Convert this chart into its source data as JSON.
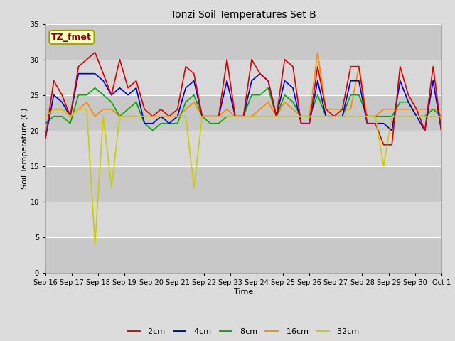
{
  "title": "Tonzi Soil Temperatures Set B",
  "xlabel": "Time",
  "ylabel": "Soil Temperature (C)",
  "annotation_text": "TZ_fmet",
  "annotation_color": "#8B0000",
  "annotation_bg": "#FFFFC0",
  "annotation_border": "#999900",
  "ylim": [
    0,
    35
  ],
  "yticks": [
    0,
    5,
    10,
    15,
    20,
    25,
    30,
    35
  ],
  "xtick_labels": [
    "Sep 16",
    "Sep 17",
    "Sep 18",
    "Sep 19",
    "Sep 20",
    "Sep 21",
    "Sep 22",
    "Sep 23",
    "Sep 24",
    "Sep 25",
    "Sep 26",
    "Sep 27",
    "Sep 28",
    "Sep 29",
    "Sep 30",
    "Oct 1"
  ],
  "bg_color": "#DCDCDC",
  "plot_bg_bands": [
    [
      0,
      5,
      "#C8C8C8"
    ],
    [
      5,
      10,
      "#D8D8D8"
    ],
    [
      10,
      15,
      "#C8C8C8"
    ],
    [
      15,
      20,
      "#D8D8D8"
    ],
    [
      20,
      25,
      "#C8C8C8"
    ],
    [
      25,
      30,
      "#D8D8D8"
    ],
    [
      30,
      35,
      "#C8C8C8"
    ]
  ],
  "series": {
    "-2cm": {
      "color": "#DD0000"
    },
    "-4cm": {
      "color": "#0000CC"
    },
    "-8cm": {
      "color": "#00AA00"
    },
    "-16cm": {
      "color": "#FF8800"
    },
    "-32cm": {
      "color": "#CCCC00"
    }
  },
  "red": [
    19,
    27,
    25,
    22,
    29,
    30,
    31,
    28,
    25,
    30,
    26,
    27,
    23,
    22,
    23,
    22,
    23,
    29,
    28,
    22,
    22,
    22,
    30,
    22,
    22,
    30,
    28,
    27,
    22,
    30,
    29,
    21,
    21,
    29,
    23,
    22,
    23,
    29,
    29,
    21,
    21,
    18,
    18,
    29,
    25,
    23,
    20,
    29,
    20
  ],
  "blue": [
    19,
    25,
    24,
    22,
    28,
    28,
    28,
    27,
    25,
    26,
    25,
    26,
    21,
    21,
    22,
    21,
    22,
    26,
    27,
    22,
    22,
    22,
    27,
    22,
    22,
    27,
    28,
    27,
    22,
    27,
    26,
    21,
    21,
    27,
    22,
    22,
    22,
    27,
    27,
    21,
    21,
    21,
    20,
    27,
    24,
    22,
    20,
    27,
    20
  ],
  "green": [
    21,
    22,
    22,
    21,
    25,
    25,
    26,
    25,
    24,
    22,
    23,
    24,
    21,
    20,
    21,
    21,
    21,
    24,
    25,
    22,
    21,
    21,
    22,
    22,
    22,
    25,
    25,
    26,
    22,
    25,
    24,
    22,
    22,
    25,
    22,
    22,
    22,
    25,
    25,
    22,
    22,
    22,
    22,
    24,
    24,
    22,
    22,
    23,
    22
  ],
  "orange": [
    23,
    23,
    23,
    22,
    23,
    24,
    22,
    23,
    23,
    22,
    22,
    22,
    22,
    22,
    22,
    22,
    22,
    23,
    24,
    22,
    22,
    22,
    23,
    22,
    22,
    22,
    23,
    24,
    22,
    24,
    23,
    22,
    22,
    31,
    23,
    23,
    23,
    23,
    29,
    22,
    22,
    23,
    23,
    23,
    23,
    23,
    23,
    23,
    23
  ],
  "yellow": [
    22,
    23,
    23,
    22,
    23,
    23,
    4,
    22,
    12,
    22,
    22,
    22,
    22,
    22,
    22,
    22,
    22,
    22,
    12,
    22,
    22,
    22,
    22,
    22,
    22,
    22,
    22,
    22,
    22,
    22,
    22,
    22,
    22,
    22,
    22,
    22,
    22,
    22,
    22,
    22,
    22,
    15,
    22,
    22,
    22,
    22,
    22,
    22,
    22
  ]
}
